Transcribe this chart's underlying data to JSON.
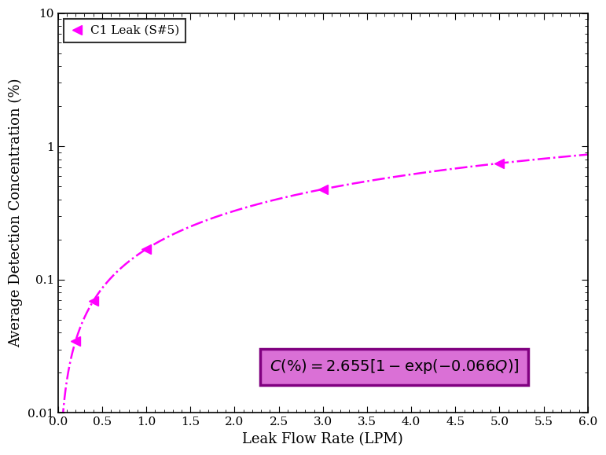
{
  "title": "",
  "xlabel": "Leak Flow Rate (LPM)",
  "ylabel": "Average Detection Concentration (%)",
  "xlim": [
    0.1,
    6.0
  ],
  "ylim_log": [
    0.01,
    10
  ],
  "curve_color": "#FF00FF",
  "marker_color": "#FF00FF",
  "a": 2.655,
  "b": 0.066,
  "data_points_x": [
    0.2,
    0.4,
    1.0,
    3.0,
    5.0
  ],
  "legend_label": "C1 Leak (S#5)",
  "box_facecolor": "#DA70D6",
  "box_edgecolor": "#800080",
  "background_color": "#FFFFFF",
  "xticks": [
    0.0,
    0.5,
    1.0,
    1.5,
    2.0,
    2.5,
    3.0,
    3.5,
    4.0,
    4.5,
    5.0,
    5.5,
    6.0
  ],
  "figsize": [
    7.71,
    5.79
  ],
  "dpi": 100
}
